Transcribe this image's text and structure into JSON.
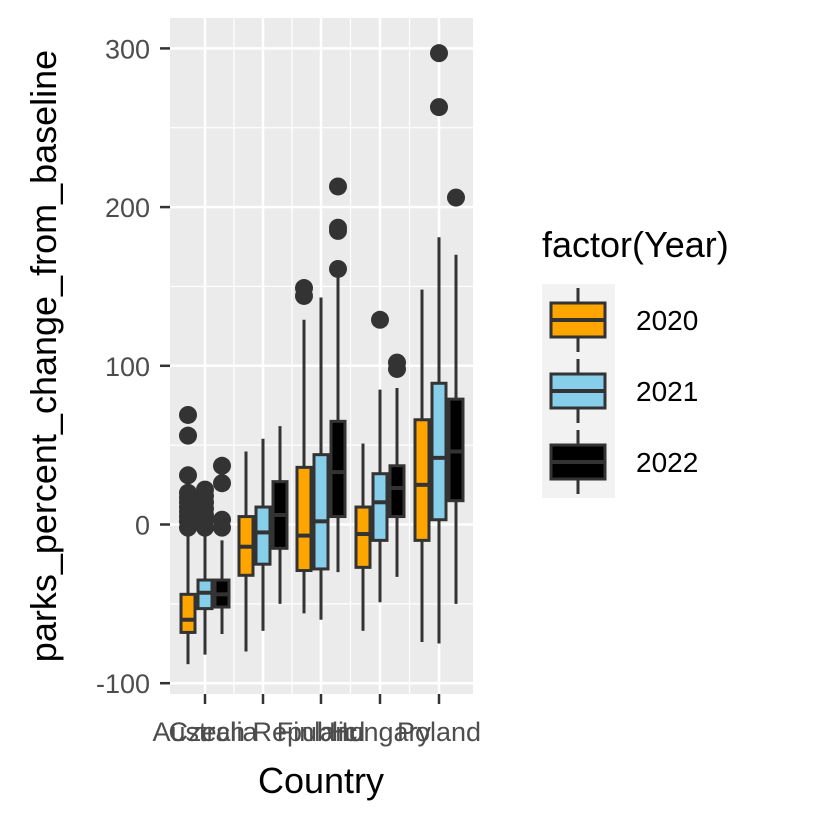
{
  "chart_data": {
    "type": "boxplot",
    "xlabel": "Country",
    "ylabel": "parks_percent_change_from_baseline",
    "categories": [
      "Australia",
      "Czech Republic",
      "Finland",
      "Hungary",
      "Poland"
    ],
    "ylim": [
      -105,
      318
    ],
    "y_ticks": [
      -100,
      0,
      100,
      200,
      300
    ],
    "grid": true,
    "legend": {
      "title": "factor(Year)",
      "position": "right"
    },
    "series": [
      {
        "name": "2020",
        "color": "#FFA500",
        "boxes": [
          {
            "category": "Australia",
            "lower_whisker": -88,
            "q1": -68,
            "median": -60,
            "q3": -44,
            "upper_whisker": -5,
            "outliers": [
              -2,
              2,
              5,
              8,
              11,
              14,
              17,
              20,
              31,
              56,
              69
            ]
          },
          {
            "category": "Czech Republic",
            "lower_whisker": -80,
            "q1": -32,
            "median": -14,
            "q3": 5,
            "upper_whisker": 46,
            "outliers": []
          },
          {
            "category": "Finland",
            "lower_whisker": -56,
            "q1": -29,
            "median": -7,
            "q3": 36,
            "upper_whisker": 129,
            "outliers": [
              144,
              149
            ]
          },
          {
            "category": "Hungary",
            "lower_whisker": -67,
            "q1": -27,
            "median": -6,
            "q3": 11,
            "upper_whisker": 51,
            "outliers": []
          },
          {
            "category": "Poland",
            "lower_whisker": -74,
            "q1": -10,
            "median": 25,
            "q3": 66,
            "upper_whisker": 148,
            "outliers": []
          }
        ]
      },
      {
        "name": "2021",
        "color": "#87CEEB",
        "boxes": [
          {
            "category": "Australia",
            "lower_whisker": -82,
            "q1": -53,
            "median": -43,
            "q3": -35,
            "upper_whisker": -5,
            "outliers": [
              -2,
              2,
              6,
              10,
              14,
              18,
              22
            ]
          },
          {
            "category": "Czech Republic",
            "lower_whisker": -67,
            "q1": -25,
            "median": -5,
            "q3": 11,
            "upper_whisker": 54,
            "outliers": []
          },
          {
            "category": "Finland",
            "lower_whisker": -60,
            "q1": -28,
            "median": 2,
            "q3": 44,
            "upper_whisker": 143,
            "outliers": []
          },
          {
            "category": "Hungary",
            "lower_whisker": -49,
            "q1": -10,
            "median": 14,
            "q3": 32,
            "upper_whisker": 85,
            "outliers": [
              129
            ]
          },
          {
            "category": "Poland",
            "lower_whisker": -75,
            "q1": 3,
            "median": 42,
            "q3": 89,
            "upper_whisker": 181,
            "outliers": [
              263,
              297
            ]
          }
        ]
      },
      {
        "name": "2022",
        "color": "#000000",
        "boxes": [
          {
            "category": "Australia",
            "lower_whisker": -69,
            "q1": -52,
            "median": -44,
            "q3": -35,
            "upper_whisker": -10,
            "outliers": [
              -2,
              3,
              26,
              37
            ]
          },
          {
            "category": "Czech Republic",
            "lower_whisker": -50,
            "q1": -15,
            "median": 6,
            "q3": 27,
            "upper_whisker": 62,
            "outliers": []
          },
          {
            "category": "Finland",
            "lower_whisker": -30,
            "q1": 5,
            "median": 33,
            "q3": 65,
            "upper_whisker": 160,
            "outliers": [
              161,
              185,
              187,
              213
            ]
          },
          {
            "category": "Hungary",
            "lower_whisker": -33,
            "q1": 5,
            "median": 23,
            "q3": 37,
            "upper_whisker": 86,
            "outliers": [
              98,
              102
            ]
          },
          {
            "category": "Poland",
            "lower_whisker": -50,
            "q1": 15,
            "median": 46,
            "q3": 79,
            "upper_whisker": 170,
            "outliers": [
              206
            ]
          }
        ]
      }
    ]
  }
}
